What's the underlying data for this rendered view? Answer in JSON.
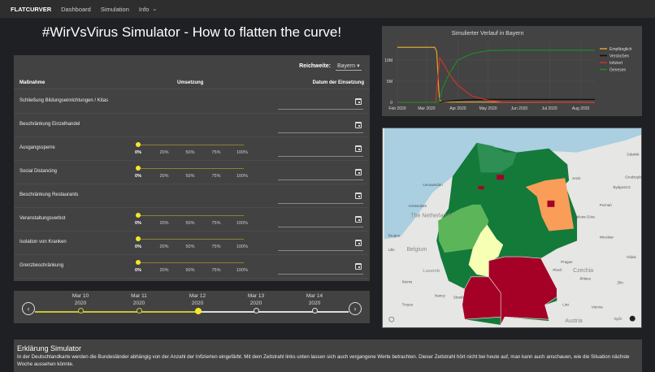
{
  "nav": {
    "brand": "FLATCURVER",
    "items": [
      "Dashboard",
      "Simulation",
      "Info"
    ]
  },
  "title": "#WirVsVirus Simulator - How to flatten the curve!",
  "measures": {
    "reach_label": "Reichweite:",
    "reach_value": "Bayern",
    "columns": [
      "Maßnahme",
      "Umsetzung",
      "Datum der Einsetzung"
    ],
    "slider_ticks": [
      "0%",
      "20%",
      "50%",
      "75%",
      "100%"
    ],
    "rows": [
      {
        "label": "Schließung Bildungseinrichtungen / Kitas",
        "slider": false,
        "value_percent": null
      },
      {
        "label": "Beschränkung Einzelhandel",
        "slider": false,
        "value_percent": null
      },
      {
        "label": "Ausgangssperre",
        "slider": true,
        "value_percent": 0
      },
      {
        "label": "Social Distancing",
        "slider": true,
        "value_percent": 0
      },
      {
        "label": "Beschränkung Restaurants",
        "slider": false,
        "value_percent": null
      },
      {
        "label": "Veranstaltungsverbot",
        "slider": true,
        "value_percent": 0
      },
      {
        "label": "Isolation von Kranken",
        "slider": true,
        "value_percent": 0
      },
      {
        "label": "Grenzbeschränkung",
        "slider": true,
        "value_percent": 0
      }
    ]
  },
  "timeline": {
    "points": [
      {
        "month": "Mar 10",
        "year": "2020",
        "state": "past"
      },
      {
        "month": "Mar 11",
        "year": "2020",
        "state": "past"
      },
      {
        "month": "Mar 12",
        "year": "2020",
        "state": "current"
      },
      {
        "month": "Mar 13",
        "year": "2020",
        "state": "future"
      },
      {
        "month": "Mar 14",
        "year": "2020",
        "state": "future"
      }
    ],
    "active_color": "#c9c23a",
    "current_color": "#f5e82a"
  },
  "chart_data": {
    "type": "line",
    "title": "Simulierter Verlauf in Bayern",
    "x_ticks": [
      "Feb 2020",
      "Mar 2020",
      "Apr 2020",
      "May 2020",
      "Jun 2020",
      "Jul 2020",
      "Aug 2020"
    ],
    "y_ticks": [
      "0",
      "5M",
      "10M"
    ],
    "ylim": [
      0,
      14000000
    ],
    "xlim": [
      "2020-02-01",
      "2020-08-15"
    ],
    "grid": true,
    "legend": "right",
    "series": [
      {
        "name": "Empfänglich",
        "color": "#e0a52a",
        "points": [
          [
            "2020-02-01",
            13000000
          ],
          [
            "2020-03-09",
            13000000
          ],
          [
            "2020-03-11",
            12000000
          ],
          [
            "2020-03-12",
            8000000
          ],
          [
            "2020-03-13",
            3000000
          ],
          [
            "2020-03-14",
            500000
          ],
          [
            "2020-03-16",
            100000
          ],
          [
            "2020-08-15",
            0
          ]
        ]
      },
      {
        "name": "Verstorben",
        "color": "#111111",
        "points": [
          [
            "2020-02-01",
            0
          ],
          [
            "2020-03-12",
            0
          ],
          [
            "2020-03-20",
            200000
          ],
          [
            "2020-04-01",
            500000
          ],
          [
            "2020-04-15",
            650000
          ],
          [
            "2020-05-01",
            700000
          ],
          [
            "2020-08-15",
            700000
          ]
        ]
      },
      {
        "name": "Infiziert",
        "color": "#d0312d",
        "points": [
          [
            "2020-02-01",
            0
          ],
          [
            "2020-03-10",
            0
          ],
          [
            "2020-03-12",
            5000000
          ],
          [
            "2020-03-14",
            10500000
          ],
          [
            "2020-03-18",
            9000000
          ],
          [
            "2020-03-24",
            6500000
          ],
          [
            "2020-04-01",
            4000000
          ],
          [
            "2020-04-15",
            1500000
          ],
          [
            "2020-05-01",
            500000
          ],
          [
            "2020-05-15",
            100000
          ],
          [
            "2020-08-15",
            0
          ]
        ]
      },
      {
        "name": "Genesen",
        "color": "#1f8a2a",
        "points": [
          [
            "2020-02-01",
            0
          ],
          [
            "2020-03-13",
            0
          ],
          [
            "2020-03-17",
            3500000
          ],
          [
            "2020-03-24",
            7000000
          ],
          [
            "2020-04-01",
            10000000
          ],
          [
            "2020-04-15",
            11500000
          ],
          [
            "2020-05-01",
            12200000
          ],
          [
            "2020-05-15",
            12300000
          ],
          [
            "2020-08-15",
            12300000
          ]
        ]
      }
    ]
  },
  "map": {
    "state_colors": {
      "low": "#137a3a",
      "mid": "#2e8f55",
      "light": "#5db55a",
      "pale": "#f6ffb4",
      "orange": "#f99d59",
      "high": "#a50026"
    },
    "labels": [
      "Leeuwarden",
      "Amsterdam",
      "The Netherlands",
      "Bruges",
      "Lille",
      "Belgium",
      "Luxemb",
      "Reims",
      "Nancy",
      "Strasb",
      "Troyes",
      "zecin",
      "Gdańsk",
      "Grudziądz",
      "Bydgoszcz",
      "Poznań",
      "Zielona Góra",
      "Wroclaw",
      "Gliwic",
      "Prague",
      "Plzeň",
      "Czechia",
      "Jihlava",
      "Zlín",
      "Linz",
      "Vienna",
      "Austria",
      "Győr"
    ]
  },
  "explanation": {
    "title": "Erklärung Simulator",
    "text": "In der Deutschlandkarte werden die Bundesländer abhängig von der Anzahl der Infizierten eingefärbt. Mit dem Zeitstrahl links unten lassen sich auch vergangene Werte betrachten. Dieser Zeitstrahl hört nicht bei heute auf, man kann auch anschauen, wie die Situation nächste Woche aussehen könnte."
  }
}
